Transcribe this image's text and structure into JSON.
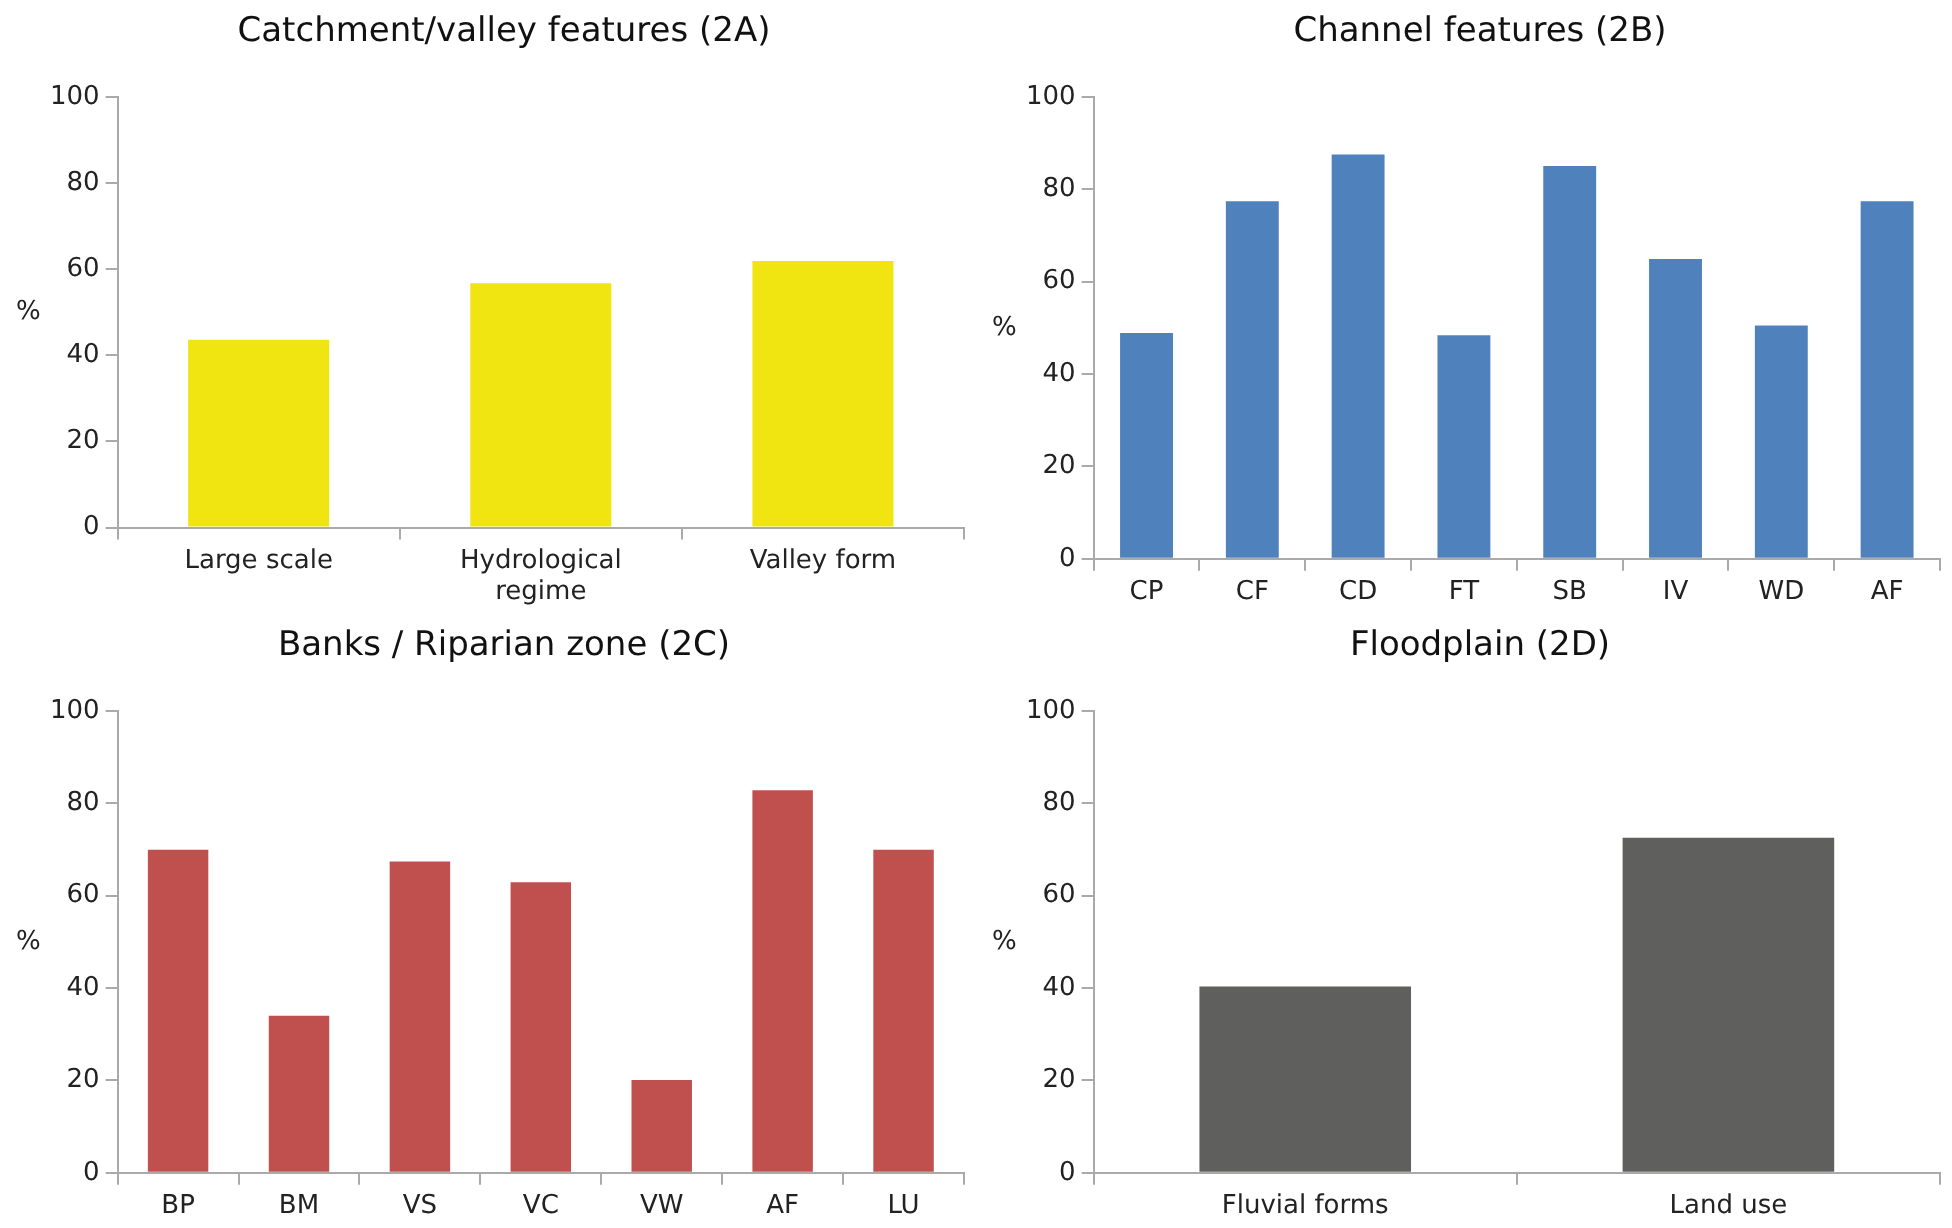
{
  "chart_data": [
    {
      "type": "bar",
      "title": "Catchment/valley features (2A)",
      "ylabel": "%",
      "categories": [
        "Large scale",
        "Hydrological regime",
        "Valley form"
      ],
      "values": [
        43.6,
        56.7,
        61.9
      ],
      "color": "#f0e511",
      "ylim": [
        0,
        100
      ],
      "yticks": [
        0,
        20,
        40,
        60,
        80,
        100
      ],
      "grid": false,
      "legend": false
    },
    {
      "type": "bar",
      "title": "Channel features (2B)",
      "ylabel": "%",
      "categories": [
        "CP",
        "CF",
        "CD",
        "FT",
        "SB",
        "IV",
        "WD",
        "AF"
      ],
      "values": [
        48.9,
        77.4,
        87.5,
        48.4,
        85,
        64.9,
        50.5,
        77.4
      ],
      "color": "#4f81bd",
      "ylim": [
        0,
        100
      ],
      "yticks": [
        0,
        20,
        40,
        60,
        80,
        100
      ],
      "grid": false,
      "legend": false
    },
    {
      "type": "bar",
      "title": "Banks / Riparian zone (2C)",
      "ylabel": "%",
      "categories": [
        "BP",
        "BM",
        "VS",
        "VC",
        "VW",
        "AF",
        "LU"
      ],
      "values": [
        69.9,
        34,
        67.4,
        62.9,
        20.1,
        82.8,
        69.9
      ],
      "color": "#c0504d",
      "ylim": [
        0,
        100
      ],
      "yticks": [
        0,
        20,
        40,
        60,
        80,
        100
      ],
      "grid": false,
      "legend": false
    },
    {
      "type": "bar",
      "title": "Floodplain (2D)",
      "ylabel": "%",
      "categories": [
        "Fluvial forms",
        "Land use"
      ],
      "values": [
        40.3,
        72.5
      ],
      "color": "#5f5f5d",
      "ylim": [
        0,
        100
      ],
      "yticks": [
        0,
        20,
        40,
        60,
        80,
        100
      ],
      "grid": false,
      "legend": false
    }
  ]
}
